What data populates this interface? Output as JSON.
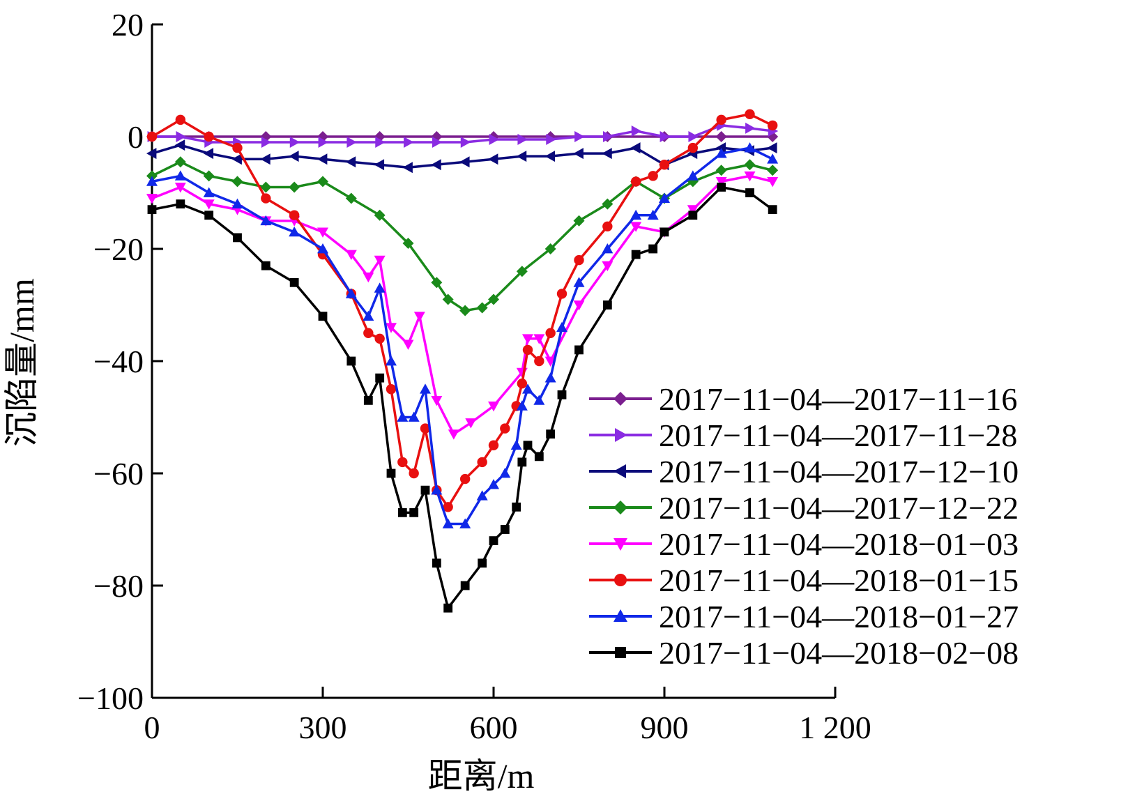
{
  "chart_data": {
    "type": "line",
    "xlabel": "距离/m",
    "ylabel": "沉陷量/mm",
    "xlim": [
      0,
      1200
    ],
    "ylim": [
      -100,
      20
    ],
    "x_ticks": [
      0,
      300,
      600,
      900,
      1200
    ],
    "x_tick_labels": [
      "0",
      "300",
      "600",
      "900",
      "1 200"
    ],
    "y_ticks": [
      20,
      0,
      -20,
      -40,
      -60,
      -80,
      -100
    ],
    "y_tick_labels": [
      "20",
      "0",
      "−20",
      "−40",
      "−60",
      "−80",
      "−100"
    ],
    "grid": false,
    "legend_position": "bottom-right",
    "series": [
      {
        "name": "2017−11−04—2017−11−16",
        "color": "#7b1f8f",
        "marker": "diamond",
        "x": [
          0,
          100,
          200,
          300,
          400,
          500,
          600,
          700,
          800,
          900,
          1000,
          1090
        ],
        "y": [
          0,
          0,
          0,
          0,
          0,
          0,
          0,
          0,
          0,
          0,
          0,
          0
        ]
      },
      {
        "name": "2017−11−04—2017−11−28",
        "color": "#8a2be2",
        "marker": "triangle-right",
        "x": [
          0,
          50,
          100,
          150,
          200,
          250,
          300,
          350,
          400,
          450,
          500,
          550,
          600,
          650,
          700,
          750,
          800,
          850,
          900,
          950,
          1000,
          1050,
          1090
        ],
        "y": [
          0,
          0,
          -1,
          -1,
          -1,
          -1,
          -1,
          -1,
          -1,
          -1,
          -1,
          -1,
          -0.5,
          -0.5,
          -0.5,
          0,
          0,
          1,
          0,
          0,
          2,
          1.5,
          1
        ]
      },
      {
        "name": "2017−11−04—2017−12−10",
        "color": "#0a0a7a",
        "marker": "triangle-left",
        "x": [
          0,
          50,
          100,
          150,
          200,
          250,
          300,
          350,
          400,
          450,
          500,
          550,
          600,
          650,
          700,
          750,
          800,
          850,
          900,
          950,
          1000,
          1050,
          1090
        ],
        "y": [
          -3,
          -1.5,
          -3,
          -4,
          -4,
          -3.5,
          -4,
          -4.5,
          -5,
          -5.5,
          -5,
          -4.5,
          -4,
          -3.5,
          -3.5,
          -3,
          -3,
          -2,
          -5,
          -3,
          -2,
          -2.5,
          -2
        ]
      },
      {
        "name": "2017−11−04—2017−12−22",
        "color": "#1a8a1a",
        "marker": "diamond",
        "x": [
          0,
          50,
          100,
          150,
          200,
          250,
          300,
          350,
          400,
          450,
          500,
          520,
          550,
          580,
          600,
          650,
          700,
          750,
          800,
          850,
          900,
          950,
          1000,
          1050,
          1090
        ],
        "y": [
          -7,
          -4.5,
          -7,
          -8,
          -9,
          -9,
          -8,
          -11,
          -14,
          -19,
          -26,
          -29,
          -31,
          -30.5,
          -29,
          -24,
          -20,
          -15,
          -12,
          -8,
          -11,
          -8,
          -6,
          -5,
          -6
        ]
      },
      {
        "name": "2017−11−04—2018−01−03",
        "color": "#ff00ff",
        "marker": "triangle-down",
        "x": [
          0,
          50,
          100,
          150,
          200,
          250,
          300,
          350,
          380,
          400,
          420,
          450,
          470,
          500,
          530,
          560,
          600,
          650,
          660,
          680,
          700,
          750,
          800,
          850,
          900,
          950,
          1000,
          1050,
          1090
        ],
        "y": [
          -11,
          -9,
          -12,
          -13,
          -15,
          -15,
          -17,
          -21,
          -25,
          -22,
          -34,
          -37,
          -32,
          -47,
          -53,
          -51,
          -48,
          -42,
          -36,
          -36,
          -40,
          -30,
          -23,
          -16,
          -17,
          -13,
          -8,
          -7,
          -8
        ]
      },
      {
        "name": "2017−11−04—2018−01−15",
        "color": "#e81010",
        "marker": "circle",
        "x": [
          0,
          50,
          100,
          150,
          200,
          250,
          300,
          350,
          380,
          400,
          420,
          440,
          460,
          480,
          500,
          520,
          550,
          580,
          600,
          620,
          640,
          650,
          660,
          680,
          700,
          720,
          750,
          800,
          850,
          880,
          900,
          950,
          1000,
          1050,
          1090
        ],
        "y": [
          0,
          3,
          0,
          -2,
          -11,
          -14,
          -21,
          -28,
          -35,
          -36,
          -45,
          -58,
          -60,
          -52,
          -63,
          -66,
          -61,
          -58,
          -55,
          -52,
          -48,
          -44,
          -38,
          -40,
          -35,
          -28,
          -22,
          -16,
          -8,
          -7,
          -5,
          -2,
          3,
          4,
          2
        ]
      },
      {
        "name": "2017−11−04—2018−01−27",
        "color": "#1028e8",
        "marker": "triangle-up",
        "x": [
          0,
          50,
          100,
          150,
          200,
          250,
          300,
          350,
          380,
          400,
          420,
          440,
          460,
          480,
          500,
          520,
          550,
          580,
          600,
          620,
          640,
          650,
          660,
          680,
          700,
          720,
          750,
          800,
          850,
          880,
          900,
          950,
          1000,
          1050,
          1090
        ],
        "y": [
          -8,
          -7,
          -10,
          -12,
          -15,
          -17,
          -20,
          -28,
          -32,
          -27,
          -40,
          -50,
          -50,
          -45,
          -63,
          -69,
          -69,
          -64,
          -62,
          -60,
          -55,
          -48,
          -45,
          -47,
          -43,
          -34,
          -26,
          -20,
          -14,
          -14,
          -11,
          -7,
          -3,
          -2,
          -4
        ]
      },
      {
        "name": "2017−11−04—2018−02−08",
        "color": "#000000",
        "marker": "square",
        "x": [
          0,
          50,
          100,
          150,
          200,
          250,
          300,
          350,
          380,
          400,
          420,
          440,
          460,
          480,
          500,
          520,
          550,
          580,
          600,
          620,
          640,
          650,
          660,
          680,
          700,
          720,
          750,
          800,
          850,
          880,
          900,
          950,
          1000,
          1050,
          1090
        ],
        "y": [
          -13,
          -12,
          -14,
          -18,
          -23,
          -26,
          -32,
          -40,
          -47,
          -43,
          -60,
          -67,
          -67,
          -63,
          -76,
          -84,
          -80,
          -76,
          -72,
          -70,
          -66,
          -58,
          -55,
          -57,
          -53,
          -46,
          -38,
          -30,
          -21,
          -20,
          -17,
          -14,
          -9,
          -10,
          -13
        ]
      }
    ]
  }
}
